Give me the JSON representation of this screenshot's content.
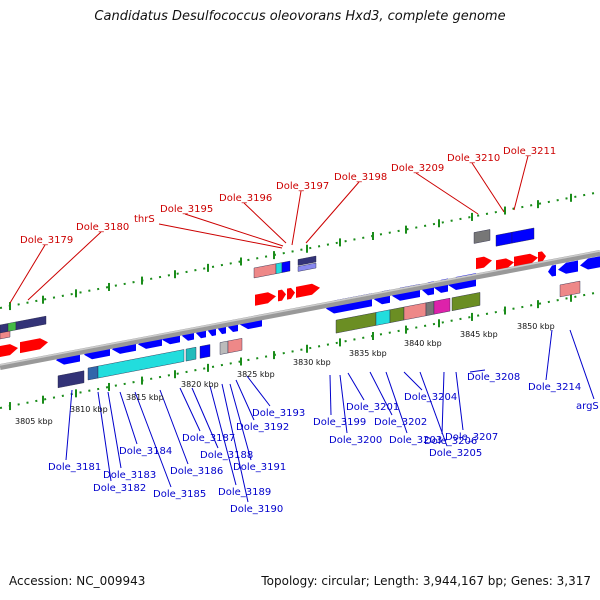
{
  "title": "Candidatus Desulfococcus oleovorans Hxd3, complete genome",
  "footer": {
    "accession": "Accession: NC_009943",
    "topology": "Topology: circular; Length: 3,944,167 bp; Genes: 3,317"
  },
  "colors": {
    "forward_label": "#cc0000",
    "reverse_label": "#0000cc",
    "backbone": "#888888",
    "dotted_track": "#1a8c1a",
    "forward_gene": "#ff0000",
    "reverse_gene": "#0000ff",
    "cyan_block": "#22dddd",
    "olive_block": "#6b8e23",
    "navy_block": "#333377",
    "pink_block": "#ee8888",
    "magenta_block": "#dd22aa",
    "grey_block": "#777777"
  },
  "kbp_labels": [
    "3805 kbp",
    "3810 kbp",
    "3815 kbp",
    "3820 kbp",
    "3825 kbp",
    "3830 kbp",
    "3835 kbp",
    "3840 kbp",
    "3845 kbp",
    "3850 kbp"
  ],
  "forward_genes": [
    "Dole_3179",
    "Dole_3180",
    "thrS",
    "Dole_3195",
    "Dole_3196",
    "Dole_3197",
    "Dole_3198",
    "Dole_3209",
    "Dole_3210",
    "Dole_3211"
  ],
  "reverse_genes": [
    "Dole_3181",
    "Dole_3182",
    "Dole_3183",
    "Dole_3184",
    "Dole_3185",
    "Dole_3186",
    "Dole_3187",
    "Dole_3188",
    "Dole_3189",
    "Dole_3190",
    "Dole_3191",
    "Dole_3192",
    "Dole_3193",
    "Dole_3199",
    "Dole_3200",
    "Dole_3201",
    "Dole_3202",
    "Dole_3203",
    "Dole_3204",
    "Dole_3205",
    "Dole_3206",
    "Dole_3207",
    "Dole_3208",
    "Dole_3214",
    "argS"
  ]
}
